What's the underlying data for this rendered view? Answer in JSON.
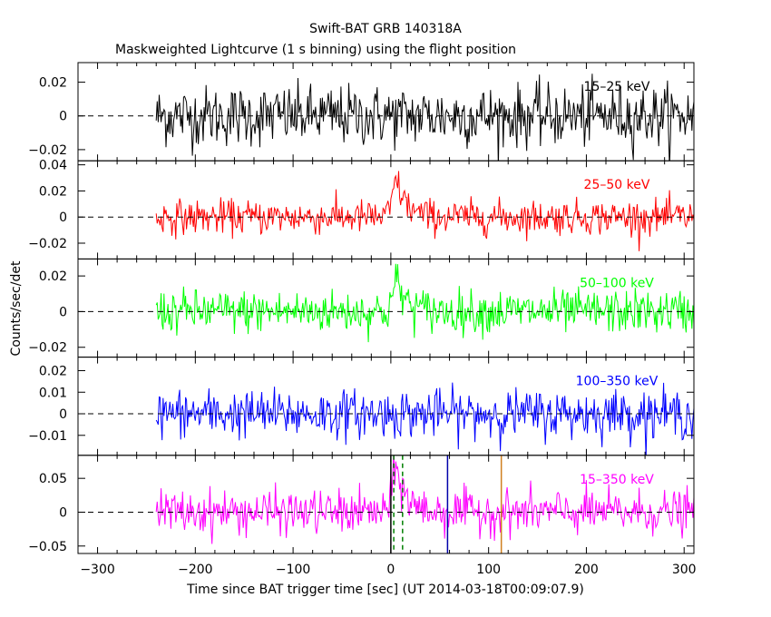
{
  "chart_data": {
    "type": "line",
    "title": "Swift-BAT GRB 140318A",
    "subtitle": "Maskweighted Lightcurve (1 s binning) using the flight position",
    "xlabel": "Time since BAT trigger time [sec] (UT 2014-03-18T00:09:07.9)",
    "ylabel": "Counts/sec/det",
    "xlim": [
      -320,
      310
    ],
    "x_ticks": [
      -300,
      -200,
      -100,
      0,
      100,
      200,
      300
    ],
    "x_tick_labels": [
      "−300",
      "−200",
      "−100",
      "0",
      "100",
      "200",
      "300"
    ],
    "data_range": [
      -240,
      310
    ],
    "panels": [
      {
        "name": "15–25 keV",
        "color": "#000000",
        "ylim": [
          -0.025,
          0.03
        ],
        "y_ticks": [
          -0.02,
          0,
          0.02
        ],
        "y_tick_labels": [
          "−0.02",
          "0",
          "0.02"
        ],
        "noise_sigma": 0.009,
        "peak": 0.0
      },
      {
        "name": "25–50 keV",
        "color": "#ff0000",
        "ylim": [
          -0.03,
          0.041
        ],
        "y_ticks": [
          -0.02,
          0,
          0.02,
          0.04
        ],
        "y_tick_labels": [
          "−0.02",
          "0",
          "0.02",
          "0.04"
        ],
        "noise_sigma": 0.0065,
        "peak": 0.028
      },
      {
        "name": "50–100 keV",
        "color": "#00ff00",
        "ylim": [
          -0.024,
          0.028
        ],
        "y_ticks": [
          -0.02,
          0,
          0.02
        ],
        "y_tick_labels": [
          "−0.02",
          "0",
          "0.02"
        ],
        "noise_sigma": 0.006,
        "peak": 0.017
      },
      {
        "name": "100–350 keV",
        "color": "#0000ff",
        "ylim": [
          -0.018,
          0.025
        ],
        "y_ticks": [
          -0.01,
          0,
          0.01,
          0.02
        ],
        "y_tick_labels": [
          "−0.01",
          "0",
          "0.01",
          "0.02"
        ],
        "noise_sigma": 0.0055,
        "peak": 0.0
      },
      {
        "name": "15–350 keV",
        "color": "#ff00ff",
        "ylim": [
          -0.057,
          0.08
        ],
        "y_ticks": [
          -0.05,
          0,
          0.05
        ],
        "y_tick_labels": [
          "−0.05",
          "0",
          "0.05"
        ],
        "noise_sigma": 0.016,
        "peak": 0.065
      }
    ],
    "markers": [
      {
        "x": 0,
        "color": "#000000",
        "style": "solid"
      },
      {
        "x": 3,
        "color": "#008000",
        "style": "dashed"
      },
      {
        "x": 12,
        "color": "#008000",
        "style": "dashed"
      },
      {
        "x": 58,
        "color": "#0000aa",
        "style": "solid"
      },
      {
        "x": 113,
        "color": "#d08020",
        "style": "solid"
      }
    ]
  }
}
